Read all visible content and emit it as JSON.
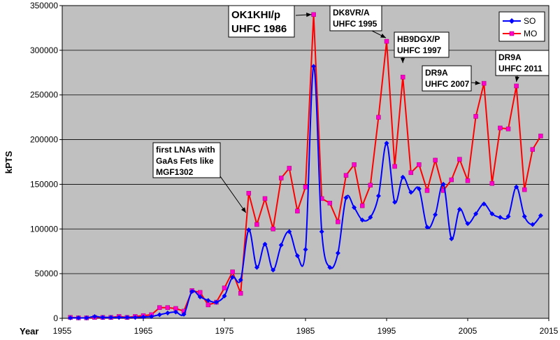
{
  "chart_data": {
    "type": "line",
    "title": "",
    "xlabel": "Year",
    "ylabel": "kPTS",
    "xlim": [
      1955,
      2015
    ],
    "ylim": [
      0,
      350000
    ],
    "x_ticks": [
      "1955",
      "1965",
      "1975",
      "1985",
      "1995",
      "2005",
      "2015"
    ],
    "y_ticks": [
      "0",
      "50000",
      "100000",
      "150000",
      "200000",
      "250000",
      "300000",
      "350000"
    ],
    "grid": true,
    "legend_position": "top-right",
    "colors": {
      "plot_bg": "#c0c0c0",
      "SO": "#0000ff",
      "MO": "#ff0000",
      "MO_marker": "#ff00cc"
    },
    "series": [
      {
        "name": "SO",
        "x": [
          1956,
          1957,
          1958,
          1959,
          1960,
          1961,
          1962,
          1963,
          1964,
          1965,
          1966,
          1967,
          1968,
          1969,
          1970,
          1971,
          1972,
          1973,
          1974,
          1975,
          1976,
          1977,
          1978,
          1979,
          1980,
          1981,
          1982,
          1983,
          1984,
          1985,
          1986,
          1987,
          1988,
          1989,
          1990,
          1991,
          1992,
          1993,
          1994,
          1995,
          1996,
          1997,
          1998,
          1999,
          2000,
          2001,
          2002,
          2003,
          2004,
          2005,
          2006,
          2007,
          2008,
          2009,
          2010,
          2011,
          2012,
          2013,
          2014
        ],
        "values": [
          500,
          500,
          500,
          2000,
          1000,
          1000,
          1000,
          1000,
          1000,
          1500,
          2000,
          4000,
          6000,
          7000,
          4500,
          30000,
          24000,
          20000,
          18000,
          25000,
          46000,
          43000,
          99000,
          57000,
          83000,
          54000,
          82000,
          97000,
          70000,
          77000,
          282000,
          97000,
          57000,
          73000,
          135000,
          124000,
          110000,
          113000,
          137000,
          196000,
          130000,
          158000,
          141000,
          145000,
          102000,
          116000,
          150000,
          89000,
          122000,
          106000,
          117000,
          128000,
          117000,
          113000,
          114000,
          147000,
          114000,
          105000,
          115000
        ]
      },
      {
        "name": "MO",
        "x": [
          1956,
          1957,
          1958,
          1959,
          1960,
          1961,
          1962,
          1963,
          1964,
          1965,
          1966,
          1967,
          1968,
          1969,
          1970,
          1971,
          1972,
          1973,
          1974,
          1975,
          1976,
          1977,
          1978,
          1979,
          1980,
          1981,
          1982,
          1983,
          1984,
          1985,
          1986,
          1987,
          1988,
          1989,
          1990,
          1991,
          1992,
          1993,
          1994,
          1995,
          1996,
          1997,
          1998,
          1999,
          2000,
          2001,
          2002,
          2003,
          2004,
          2005,
          2006,
          2007,
          2008,
          2009,
          2010,
          2011,
          2012,
          2013,
          2014
        ],
        "values": [
          1000,
          500,
          500,
          1000,
          1000,
          1000,
          2000,
          1000,
          2000,
          3000,
          4000,
          12000,
          12000,
          11000,
          8000,
          31000,
          29000,
          15000,
          18000,
          34000,
          52000,
          28000,
          140000,
          105000,
          134000,
          100000,
          157000,
          168000,
          120000,
          147000,
          340000,
          134000,
          129000,
          108000,
          160000,
          172000,
          126000,
          149000,
          225000,
          310000,
          170000,
          270000,
          163000,
          172000,
          143000,
          177000,
          143000,
          155000,
          178000,
          154000,
          226000,
          263000,
          151000,
          213000,
          212000,
          260000,
          144000,
          189000,
          204000
        ]
      }
    ],
    "annotations": [
      {
        "lines": [
          "OK1KHI/p",
          "UHFC 1986"
        ],
        "x": 1986,
        "y": 340000
      },
      {
        "lines": [
          "DK8VR/A",
          "UHFC 1995"
        ],
        "x": 1995,
        "y": 310000
      },
      {
        "lines": [
          "HB9DGX/P",
          "UHFC 1997"
        ],
        "x": 1997,
        "y": 270000
      },
      {
        "lines": [
          "DR9A",
          "UHFC 2007"
        ],
        "x": 2007,
        "y": 263000
      },
      {
        "lines": [
          "DR9A",
          "UHFC 2011"
        ],
        "x": 2011,
        "y": 260000
      },
      {
        "lines": [
          "first LNAs with",
          "GaAs Fets like",
          "MGF1302"
        ],
        "x": 1978,
        "y": 115000
      }
    ]
  }
}
